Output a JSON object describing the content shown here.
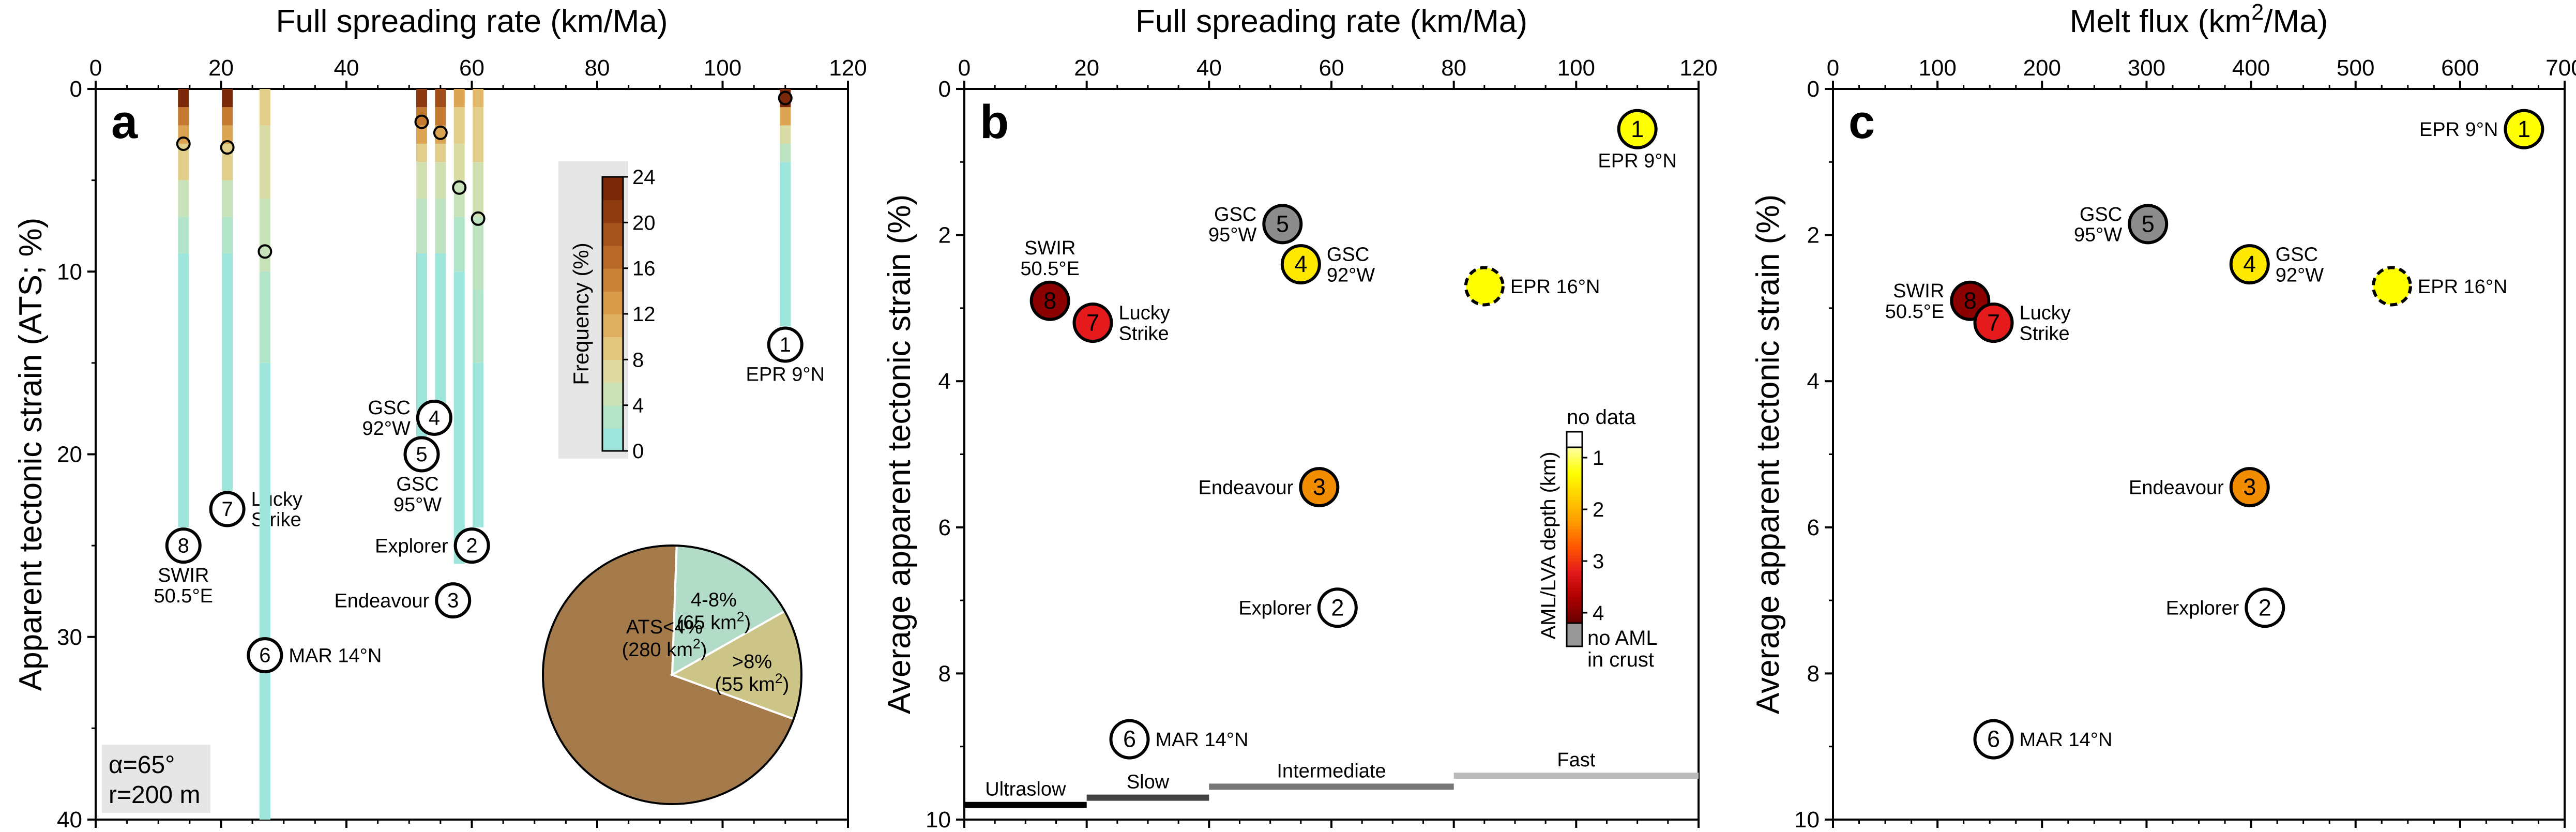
{
  "chart_data": [
    {
      "panel": "a",
      "type": "heatmap",
      "xlabel": "Full spreading rate (km/Ma)",
      "ylabel": "Apparent tectonic strain (ATS; %)",
      "xlim": [
        0,
        120
      ],
      "ylim": [
        40,
        0
      ],
      "xticks": [
        "0",
        "20",
        "40",
        "60",
        "80",
        "100",
        "120"
      ],
      "yticks": [
        "0",
        "10",
        "20",
        "30",
        "40"
      ],
      "param_text": [
        "α=65°",
        "r=200 m"
      ],
      "colorbar": {
        "label": "Frequency (%)",
        "ticks": [
          "0",
          "4",
          "8",
          "12",
          "16",
          "20",
          "24"
        ],
        "range": [
          0,
          24
        ],
        "colors": [
          "#9ee6dc",
          "#b4e4c8",
          "#cce2b6",
          "#dedaa0",
          "#e4c880",
          "#dfb060",
          "#d69a48",
          "#c98236",
          "#b96a28",
          "#a5521c",
          "#903c12",
          "#7a2808"
        ]
      },
      "columns": [
        {
          "id": "8",
          "rate": 14,
          "mean_ats": 3,
          "strain_top": 0,
          "strain_bottom": 24,
          "label": [
            "SWIR",
            "50.5°E"
          ],
          "label_ats": 25,
          "label_pos": "below",
          "cells": [
            [
              0,
              1,
              24
            ],
            [
              1,
              2,
              16
            ],
            [
              2,
              3,
              12
            ],
            [
              3,
              5,
              8
            ],
            [
              5,
              7,
              4
            ],
            [
              7,
              9,
              2
            ],
            [
              9,
              24,
              0
            ]
          ]
        },
        {
          "id": "7",
          "rate": 21,
          "mean_ats": 3.2,
          "strain_top": 0,
          "strain_bottom": 22,
          "label": [
            "Lucky",
            "Strike"
          ],
          "label_ats": 23,
          "label_pos": "right",
          "cells": [
            [
              0,
              1,
              24
            ],
            [
              1,
              2,
              16
            ],
            [
              2,
              3,
              12
            ],
            [
              3,
              5,
              8
            ],
            [
              5,
              7,
              4
            ],
            [
              7,
              9,
              2
            ],
            [
              9,
              22,
              0
            ]
          ]
        },
        {
          "id": "6",
          "rate": 27,
          "mean_ats": 8.9,
          "strain_top": 0,
          "strain_bottom": 40,
          "label": [
            "MAR 14°N"
          ],
          "label_ats": 31,
          "label_pos": "right",
          "cells": [
            [
              0,
              2,
              8
            ],
            [
              2,
              6,
              6
            ],
            [
              6,
              10,
              4
            ],
            [
              10,
              15,
              2
            ],
            [
              15,
              40,
              0
            ]
          ]
        },
        {
          "id": "5",
          "rate": 52,
          "mean_ats": 1.8,
          "strain_top": 0,
          "strain_bottom": 20,
          "label": [
            "GSC",
            "95°W"
          ],
          "label_ats": 20,
          "label_pos": "below-left",
          "cells": [
            [
              0,
              1,
              22
            ],
            [
              1,
              2,
              16
            ],
            [
              2,
              3,
              12
            ],
            [
              3,
              4,
              8
            ],
            [
              4,
              6,
              5
            ],
            [
              6,
              9,
              3
            ],
            [
              9,
              20,
              0
            ]
          ]
        },
        {
          "id": "4",
          "rate": 55,
          "mean_ats": 2.4,
          "strain_top": 0,
          "strain_bottom": 18,
          "label": [
            "GSC",
            "92°W"
          ],
          "label_ats": 18,
          "label_pos": "left",
          "cells": [
            [
              0,
              1,
              20
            ],
            [
              1,
              2,
              16
            ],
            [
              2,
              3,
              12
            ],
            [
              3,
              4,
              8
            ],
            [
              4,
              6,
              5
            ],
            [
              6,
              9,
              3
            ],
            [
              9,
              18,
              0
            ]
          ]
        },
        {
          "id": "3",
          "rate": 58,
          "mean_ats": 5.4,
          "strain_top": 0,
          "strain_bottom": 26,
          "label": [
            "Endeavour"
          ],
          "label_ats": 28,
          "label_pos": "left",
          "cells": [
            [
              0,
              1,
              12
            ],
            [
              1,
              3,
              8
            ],
            [
              3,
              5,
              6
            ],
            [
              5,
              7,
              4
            ],
            [
              7,
              10,
              2
            ],
            [
              10,
              26,
              0
            ]
          ]
        },
        {
          "id": "2",
          "rate": 61,
          "mean_ats": 7.1,
          "strain_top": 0,
          "strain_bottom": 24,
          "label": [
            "Explorer"
          ],
          "label_ats": 25,
          "label_pos": "left",
          "cells": [
            [
              0,
              1,
              10
            ],
            [
              1,
              4,
              8
            ],
            [
              4,
              7,
              5
            ],
            [
              7,
              11,
              3
            ],
            [
              11,
              15,
              2
            ],
            [
              15,
              24,
              0
            ]
          ]
        },
        {
          "id": "1",
          "rate": 110,
          "mean_ats": 0.5,
          "strain_top": 0,
          "strain_bottom": 13,
          "label": [
            "EPR 9°N"
          ],
          "label_ats": 14,
          "label_pos": "below",
          "cells": [
            [
              0,
              1,
              24
            ],
            [
              1,
              2,
              12
            ],
            [
              2,
              3,
              6
            ],
            [
              3,
              4,
              3
            ],
            [
              4,
              13,
              0
            ]
          ]
        }
      ],
      "pie": {
        "slices": [
          {
            "label": "ATS<4%",
            "sublabel": "(280 km²)",
            "value": 280,
            "color": "#a57a4b"
          },
          {
            "label": "4-8%",
            "sublabel": "(65 km²)",
            "value": 65,
            "color": "#b2dcc8"
          },
          {
            "label": ">8%",
            "sublabel": "(55 km²)",
            "value": 55,
            "color": "#cdc488"
          }
        ]
      }
    },
    {
      "panel": "b",
      "type": "scatter",
      "xlabel": "Full spreading rate (km/Ma)",
      "ylabel": "Average apparent tectonic strain (%)",
      "xlim": [
        0,
        120
      ],
      "ylim": [
        10,
        0
      ],
      "xticks": [
        "0",
        "20",
        "40",
        "60",
        "80",
        "100",
        "120"
      ],
      "yticks": [
        "0",
        "2",
        "4",
        "6",
        "8",
        "10"
      ],
      "points": [
        {
          "id": "1",
          "x": 110,
          "y": 0.55,
          "color": "#ffff00",
          "label": [
            "EPR 9°N"
          ],
          "label_pos": "below"
        },
        {
          "id": "",
          "x": 85,
          "y": 2.7,
          "color": "#ffff00",
          "dashed": true,
          "label": [
            "EPR 16°N"
          ],
          "label_pos": "right"
        },
        {
          "id": "5",
          "x": 52,
          "y": 1.85,
          "color": "#8c8c8c",
          "label": [
            "GSC",
            "95°W"
          ],
          "label_pos": "left"
        },
        {
          "id": "4",
          "x": 55,
          "y": 2.4,
          "color": "#ffe900",
          "label": [
            "GSC",
            "92°W"
          ],
          "label_pos": "right"
        },
        {
          "id": "8",
          "x": 14,
          "y": 2.9,
          "color": "#8b0000",
          "label": [
            "SWIR",
            "50.5°E"
          ],
          "label_pos": "above"
        },
        {
          "id": "7",
          "x": 21,
          "y": 3.2,
          "color": "#e41a1c",
          "label": [
            "Lucky",
            "Strike"
          ],
          "label_pos": "right"
        },
        {
          "id": "3",
          "x": 58,
          "y": 5.45,
          "color": "#f28c00",
          "label": [
            "Endeavour"
          ],
          "label_pos": "left"
        },
        {
          "id": "2",
          "x": 61,
          "y": 7.1,
          "color": "#ffffff",
          "label": [
            "Explorer"
          ],
          "label_pos": "left"
        },
        {
          "id": "6",
          "x": 27,
          "y": 8.9,
          "color": "#ffffff",
          "label": [
            "MAR 14°N"
          ],
          "label_pos": "right"
        }
      ],
      "rate_classes": [
        {
          "label": "Ultraslow",
          "x0": 0,
          "x1": 20,
          "y": 9.8,
          "color": "#000000"
        },
        {
          "label": "Slow",
          "x0": 20,
          "x1": 40,
          "y": 9.7,
          "color": "#444444"
        },
        {
          "label": "Intermediate",
          "x0": 40,
          "x1": 80,
          "y": 9.55,
          "color": "#777777"
        },
        {
          "label": "Fast",
          "x0": 80,
          "x1": 120,
          "y": 9.4,
          "color": "#bbbbbb"
        }
      ],
      "colorbar": {
        "label": "AML/LVA depth (km)",
        "top_label": "no data",
        "ticks": [
          "1",
          "2",
          "3",
          "4"
        ],
        "range": [
          0.8,
          4.2
        ],
        "bottom_labels": [
          "no AML",
          "in crust"
        ],
        "colors": [
          "#ffff99",
          "#ffff00",
          "#ffcc00",
          "#ff9900",
          "#ff5500",
          "#e41a1c",
          "#b00000",
          "#6a0000"
        ]
      }
    },
    {
      "panel": "c",
      "type": "scatter",
      "xlabel": "Melt flux (km²/Ma)",
      "ylabel": "Average apparent tectonic strain (%)",
      "xlim": [
        0,
        720
      ],
      "ylim": [
        10,
        0
      ],
      "xticks": [
        "0",
        "100",
        "200",
        "300",
        "400",
        "500",
        "600",
        "700"
      ],
      "yticks": [
        "0",
        "2",
        "4",
        "6",
        "8",
        "10"
      ],
      "points": [
        {
          "id": "1",
          "x": 680,
          "y": 0.55,
          "color": "#ffff00",
          "label": [
            "EPR 9°N"
          ],
          "label_pos": "left"
        },
        {
          "id": "",
          "x": 550,
          "y": 2.7,
          "color": "#ffff00",
          "dashed": true,
          "label": [
            "EPR 16°N"
          ],
          "label_pos": "right"
        },
        {
          "id": "5",
          "x": 310,
          "y": 1.85,
          "color": "#8c8c8c",
          "label": [
            "GSC",
            "95°W"
          ],
          "label_pos": "left"
        },
        {
          "id": "4",
          "x": 410,
          "y": 2.4,
          "color": "#ffe900",
          "label": [
            "GSC",
            "92°W"
          ],
          "label_pos": "right"
        },
        {
          "id": "8",
          "x": 135,
          "y": 2.9,
          "color": "#8b0000",
          "label": [
            "SWIR",
            "50.5°E"
          ],
          "label_pos": "left"
        },
        {
          "id": "7",
          "x": 158,
          "y": 3.2,
          "color": "#e41a1c",
          "label": [
            "Lucky",
            "Strike"
          ],
          "label_pos": "right"
        },
        {
          "id": "3",
          "x": 410,
          "y": 5.45,
          "color": "#f28c00",
          "label": [
            "Endeavour"
          ],
          "label_pos": "left"
        },
        {
          "id": "2",
          "x": 425,
          "y": 7.1,
          "color": "#ffffff",
          "label": [
            "Explorer"
          ],
          "label_pos": "left"
        },
        {
          "id": "6",
          "x": 158,
          "y": 8.9,
          "color": "#ffffff",
          "label": [
            "MAR 14°N"
          ],
          "label_pos": "right"
        }
      ]
    }
  ]
}
